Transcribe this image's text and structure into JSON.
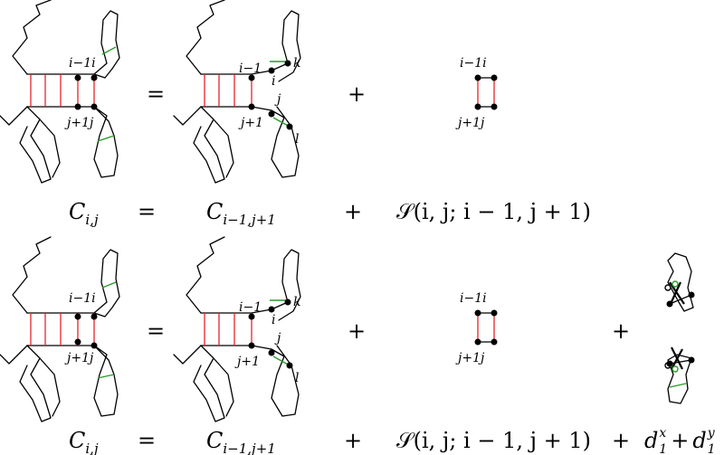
{
  "labels": {
    "i_minus_1_i": "i−1i",
    "j_plus_1_j": "j+1j",
    "i_minus_1": "i−1",
    "j_plus_1": "j+1",
    "i": "i",
    "j": "j",
    "k": "k",
    "l": "l"
  },
  "symbols": {
    "equals": "=",
    "plus": "+"
  },
  "equation1": {
    "lhs": "C",
    "lhs_sub": "i,j",
    "equals": "=",
    "term1": "C",
    "term1_sub": "i−1,j+1",
    "plus": "+",
    "term2": "𝒮(i, j; i − 1, j + 1)"
  },
  "equation2": {
    "lhs": "C",
    "lhs_sub": "i,j",
    "equals": "=",
    "term1": "C",
    "term1_sub": "i−1,j+1",
    "plus1": "+",
    "term2": "𝒮(i, j; i − 1, j + 1)",
    "plus2": "+",
    "term3_d": "d",
    "term3_sup_x": "x",
    "term3_sub": "1",
    "term3_plus": "+",
    "term3_sup_y": "y",
    "term3_sub2": "1"
  },
  "colors": {
    "base_pair": "#e8232a",
    "contact": "#2a9a2a",
    "backbone": "#000000"
  }
}
